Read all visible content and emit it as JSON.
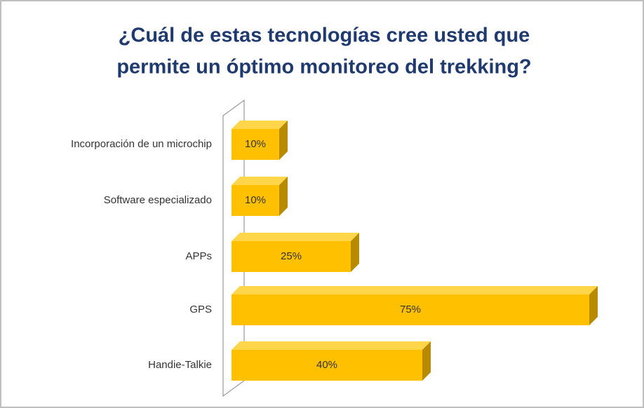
{
  "chart_data": {
    "type": "bar",
    "orientation": "horizontal",
    "title": [
      "¿Cuál de estas tecnologías cree usted que",
      "permite un óptimo  monitoreo del trekking?"
    ],
    "categories": [
      "Incorporación de un microchip",
      "Software especializado",
      "APPs",
      "GPS",
      "Handie-Talkie"
    ],
    "values": [
      10,
      10,
      25,
      75,
      40
    ],
    "value_labels": [
      "10%",
      "10%",
      "25%",
      "75%",
      "40%"
    ],
    "color": "#ffc000"
  }
}
